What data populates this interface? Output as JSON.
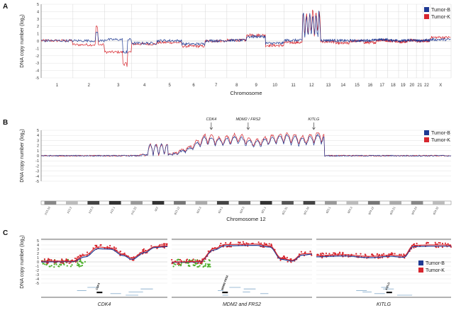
{
  "colors": {
    "tumor_b": "#1f3a93",
    "tumor_k": "#d7262e",
    "normal": "#4caf2a",
    "grid": "#c8c8c8",
    "axis": "#555555"
  },
  "chart_data": [
    {
      "panel": "A",
      "type": "line",
      "title": "",
      "xlabel": "Chromosome",
      "ylabel": "DNA copy number (log",
      "ylabel_sub": "2",
      "ylabel_end": ")",
      "ylim": [
        -5,
        5
      ],
      "yticks": [
        "5",
        "4",
        "3",
        "2",
        "1",
        "0",
        "-1",
        "-2",
        "-3",
        "-4",
        "-5"
      ],
      "grid": true,
      "legend_position": "top-right",
      "x_categories": [
        "1",
        "2",
        "3",
        "4",
        "5",
        "6",
        "7",
        "8",
        "9",
        "10",
        "11",
        "12",
        "13",
        "14",
        "15",
        "16",
        "17",
        "18",
        "19",
        "20",
        "21",
        "22",
        "X"
      ],
      "series": [
        {
          "name": "Tumor-B",
          "color": "#1f3a93",
          "segments": [
            0.05,
            0.05,
            0.2,
            -0.3,
            0.05,
            -0.4,
            0.05,
            0.1,
            0.6,
            -0.3,
            0.1,
            2.2,
            0.1,
            0.05,
            0.05,
            0.1,
            0.2,
            0.1,
            0.05,
            0.1,
            0.05,
            0.1,
            0.2
          ]
        },
        {
          "name": "Tumor-K",
          "color": "#d7262e",
          "segments": [
            0.05,
            -0.5,
            -1.5,
            -0.4,
            -0.2,
            -0.7,
            0.0,
            0.1,
            0.8,
            -0.6,
            -0.2,
            2.6,
            -0.1,
            -0.3,
            0.0,
            -0.2,
            0.1,
            0.0,
            -0.1,
            0.1,
            0.0,
            0.0,
            0.5
          ]
        }
      ]
    },
    {
      "panel": "B",
      "type": "line",
      "title": "",
      "xlabel": "Chromosome 12",
      "ylabel": "DNA copy number (log",
      "ylabel_sub": "2",
      "ylabel_end": ")",
      "ylim": [
        -5,
        5
      ],
      "yticks": [
        "5",
        "4",
        "3",
        "2",
        "1",
        "0",
        "-1",
        "-2",
        "-3",
        "-4",
        "-5"
      ],
      "grid": true,
      "legend_position": "top-right",
      "annotations": [
        "CDK4",
        "MDM2 / FRS2",
        "KITLG"
      ],
      "bands": [
        "p13.33",
        "p13.2",
        "p12.3",
        "p12.1",
        "p11.22",
        "q12",
        "q13.12",
        "q13.2",
        "q14.1",
        "q14.3",
        "q21.1",
        "q21.31",
        "q21.33",
        "q23.1",
        "q23.3",
        "q24.12",
        "q24.21",
        "q24.23",
        "q24.32"
      ],
      "series": [
        {
          "name": "Tumor-B",
          "color": "#1f3a93",
          "x": [
            0,
            10,
            20,
            32,
            36,
            40,
            44,
            48,
            52,
            56,
            60,
            64,
            68,
            72,
            76,
            80,
            84,
            88,
            92,
            100
          ],
          "values": [
            0.0,
            0.0,
            0.0,
            0.3,
            1.5,
            3.8,
            3.2,
            3.9,
            2.8,
            3.6,
            4.1,
            3.4,
            4.2,
            3.7,
            3.0,
            0.2,
            3.8,
            0.1,
            0.0,
            0.0
          ]
        },
        {
          "name": "Tumor-K",
          "color": "#d7262e",
          "x": [
            0,
            10,
            20,
            32,
            36,
            40,
            44,
            48,
            52,
            56,
            60,
            64,
            68,
            72,
            76,
            80,
            84,
            88,
            92,
            100
          ],
          "values": [
            0.0,
            0.05,
            0.0,
            0.4,
            1.8,
            4.3,
            3.6,
            4.4,
            3.1,
            4.0,
            4.5,
            3.8,
            4.7,
            4.1,
            3.4,
            0.3,
            4.2,
            0.2,
            0.05,
            0.0
          ]
        }
      ]
    },
    {
      "panel": "C",
      "type": "scatter",
      "title": "",
      "ylabel": "DNA copy number (log",
      "ylabel_sub": "2",
      "ylabel_end": ")",
      "ylim": [
        -5,
        5
      ],
      "yticks": [
        "5",
        "4",
        "3",
        "2",
        "1",
        "0",
        "-1",
        "-2",
        "-3",
        "-4",
        "-5"
      ],
      "grid": true,
      "legend_position": "top-right",
      "subpanels": [
        {
          "label": "CDK4",
          "gene_marker": "CDK4",
          "b_curve": [
            [
              0,
              0.0
            ],
            [
              0.25,
              0.05
            ],
            [
              0.35,
              1.2
            ],
            [
              0.45,
              3.1
            ],
            [
              0.55,
              3.0
            ],
            [
              0.65,
              1.5
            ],
            [
              0.72,
              0.6
            ],
            [
              0.82,
              2.2
            ],
            [
              0.9,
              3.4
            ],
            [
              1.0,
              3.6
            ]
          ],
          "k_curve": [
            [
              0,
              0.2
            ],
            [
              0.25,
              0.2
            ],
            [
              0.35,
              1.6
            ],
            [
              0.45,
              3.5
            ],
            [
              0.55,
              3.3
            ],
            [
              0.65,
              1.8
            ],
            [
              0.72,
              0.9
            ],
            [
              0.82,
              2.5
            ],
            [
              0.9,
              3.6
            ],
            [
              1.0,
              3.8
            ]
          ]
        },
        {
          "label": "MDM2 and FRS2",
          "gene_marker": "MDM2 FRS2",
          "b_curve": [
            [
              0,
              -0.1
            ],
            [
              0.2,
              0.0
            ],
            [
              0.3,
              2.8
            ],
            [
              0.38,
              3.8
            ],
            [
              0.6,
              3.9
            ],
            [
              0.7,
              3.5
            ],
            [
              0.78,
              0.6
            ],
            [
              0.86,
              0.2
            ],
            [
              0.93,
              1.6
            ],
            [
              1.0,
              1.8
            ]
          ],
          "k_curve": [
            [
              0,
              0.0
            ],
            [
              0.2,
              0.1
            ],
            [
              0.3,
              3.1
            ],
            [
              0.38,
              4.1
            ],
            [
              0.6,
              4.2
            ],
            [
              0.7,
              3.8
            ],
            [
              0.78,
              0.9
            ],
            [
              0.86,
              0.4
            ],
            [
              0.93,
              1.9
            ],
            [
              1.0,
              2.0
            ]
          ]
        },
        {
          "label": "KITLG",
          "gene_marker": "KITLG",
          "b_curve": [
            [
              0,
              1.2
            ],
            [
              0.2,
              1.4
            ],
            [
              0.4,
              1.0
            ],
            [
              0.55,
              1.3
            ],
            [
              0.65,
              1.1
            ],
            [
              0.72,
              3.6
            ],
            [
              0.85,
              3.7
            ],
            [
              1.0,
              3.7
            ]
          ],
          "k_curve": [
            [
              0,
              1.5
            ],
            [
              0.2,
              1.7
            ],
            [
              0.4,
              1.3
            ],
            [
              0.55,
              1.6
            ],
            [
              0.65,
              1.4
            ],
            [
              0.72,
              3.9
            ],
            [
              0.85,
              4.0
            ],
            [
              1.0,
              4.0
            ]
          ]
        }
      ]
    }
  ],
  "legend": {
    "series": [
      "Tumor-B",
      "Tumor-K"
    ]
  },
  "panel_labels": [
    "A",
    "B",
    "C"
  ]
}
